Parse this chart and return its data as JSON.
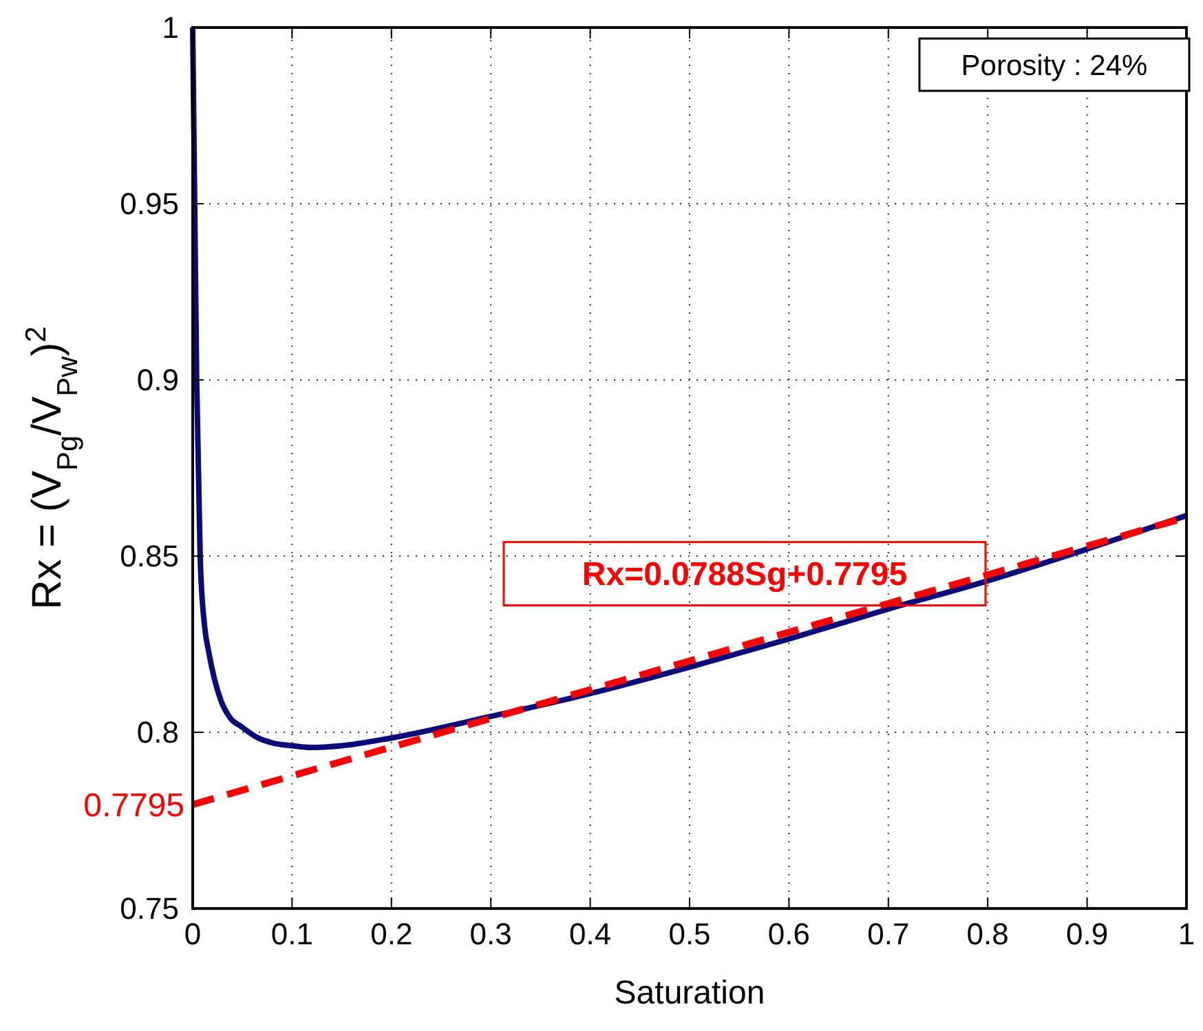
{
  "chart_data": {
    "type": "line",
    "xlabel": "Saturation",
    "ylabel": "Rx = (V$_{Pg}$/V$_{Pw}$)$^{2}$",
    "xlim": [
      0,
      1
    ],
    "ylim": [
      0.75,
      1
    ],
    "xticks": [
      0,
      0.1,
      0.2,
      0.3,
      0.4,
      0.5,
      0.6,
      0.7,
      0.8,
      0.9,
      1
    ],
    "yticks": [
      0.75,
      0.8,
      0.85,
      0.9,
      0.95,
      1
    ],
    "grid": true,
    "series": [
      {
        "color": "#0a0a7a",
        "line_style": "solid",
        "x": [
          0,
          0.002,
          0.004,
          0.0075,
          0.012,
          0.016,
          0.022,
          0.029,
          0.038,
          0.049,
          0.065,
          0.08,
          0.1,
          0.118,
          0.15,
          0.2,
          0.3,
          0.4,
          0.5,
          0.6,
          0.7,
          0.8,
          0.9,
          1
        ],
        "values": [
          1,
          0.95,
          0.9,
          0.85,
          0.83,
          0.823,
          0.815,
          0.8086,
          0.804,
          0.8016,
          0.7985,
          0.797,
          0.7962,
          0.7957,
          0.7962,
          0.7984,
          0.8045,
          0.811,
          0.8185,
          0.8265,
          0.835,
          0.843,
          0.852,
          0.8615
        ]
      },
      {
        "color": "#ff0000",
        "line_style": "dashed",
        "x": [
          0,
          1
        ],
        "values": [
          0.7795,
          0.861
        ]
      }
    ],
    "annotations": [
      {
        "text": "Porosity : 24%"
      },
      "Rx=0.0788Sg+0.7795",
      {
        "text": "0.7795",
        "x": 0,
        "y": 0.7795
      }
    ]
  }
}
